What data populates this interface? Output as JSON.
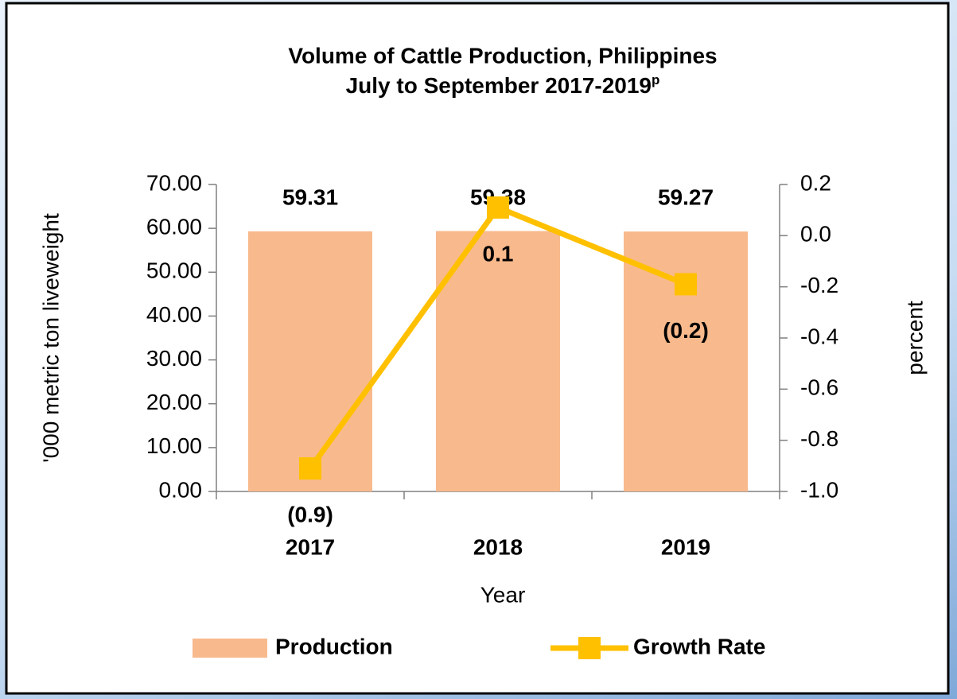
{
  "chart_data": {
    "type": "bar_line",
    "title": "Volume of Cattle Production, Philippines",
    "subtitle": "July to September 2017-2019",
    "subtitle_superscript": "p",
    "x_label": "Year",
    "y_label": "'000 metric ton liveweight",
    "y2_label": "percent",
    "categories": [
      "2017",
      "2018",
      "2019"
    ],
    "series": [
      {
        "name": "Production",
        "type": "bar",
        "color": "#f8b98c",
        "values": [
          59.31,
          59.38,
          59.27
        ]
      },
      {
        "name": "Growth Rate",
        "type": "line",
        "axis": "y2",
        "color": "#ffc000",
        "values": [
          -0.91,
          0.11,
          -0.19
        ],
        "value_labels": [
          "(0.9)",
          "0.1",
          "(0.2)"
        ]
      }
    ],
    "ylim": [
      0,
      70
    ],
    "yticks": [
      {
        "value": 0,
        "label": "0.00"
      },
      {
        "value": 10,
        "label": "10.00"
      },
      {
        "value": 20,
        "label": "20.00"
      },
      {
        "value": 30,
        "label": "30.00"
      },
      {
        "value": 40,
        "label": "40.00"
      },
      {
        "value": 50,
        "label": "50.00"
      },
      {
        "value": 60,
        "label": "60.00"
      },
      {
        "value": 70,
        "label": "70.00"
      }
    ],
    "y2lim": [
      -1.0,
      0.2
    ],
    "y2ticks": [
      {
        "value": -1.0,
        "label": "-1.0"
      },
      -0.8,
      -0.6,
      -0.4,
      -0.2,
      {
        "value": 0,
        "label": "0.0"
      },
      0.2
    ],
    "grid": false,
    "legend": "bottom"
  }
}
